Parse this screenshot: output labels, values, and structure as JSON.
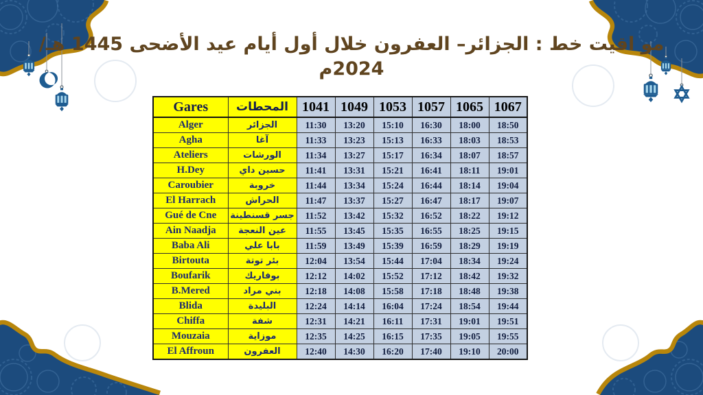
{
  "title": "مو اقيت خط : الجزائر– العفرون خلال أول أيام عيد الأضحى 1445 هـ/ 2024م",
  "table": {
    "headers": {
      "gares": "Gares",
      "stations_ar": "المحطات",
      "trains": [
        "1041",
        "1049",
        "1053",
        "1057",
        "1065",
        "1067"
      ]
    },
    "rows": [
      {
        "gare": "Alger",
        "ar": "الجزائر",
        "times": [
          "11:30",
          "13:20",
          "15:10",
          "16:30",
          "18:00",
          "18:50"
        ]
      },
      {
        "gare": "Agha",
        "ar": "آغا",
        "times": [
          "11:33",
          "13:23",
          "15:13",
          "16:33",
          "18:03",
          "18:53"
        ]
      },
      {
        "gare": "Ateliers",
        "ar": "الورشات",
        "times": [
          "11:34",
          "13:27",
          "15:17",
          "16:34",
          "18:07",
          "18:57"
        ]
      },
      {
        "gare": "H.Dey",
        "ar": "حسين داي",
        "times": [
          "11:41",
          "13:31",
          "15:21",
          "16:41",
          "18:11",
          "19:01"
        ]
      },
      {
        "gare": "Caroubier",
        "ar": "خروبة",
        "times": [
          "11:44",
          "13:34",
          "15:24",
          "16:44",
          "18:14",
          "19:04"
        ]
      },
      {
        "gare": "El Harrach",
        "ar": "الحراش",
        "times": [
          "11:47",
          "13:37",
          "15:27",
          "16:47",
          "18:17",
          "19:07"
        ]
      },
      {
        "gare": "Gué de Cne",
        "ar": "جسر قسنطينة",
        "times": [
          "11:52",
          "13:42",
          "15:32",
          "16:52",
          "18:22",
          "19:12"
        ]
      },
      {
        "gare": "Ain Naadja",
        "ar": "عين النعجة",
        "times": [
          "11:55",
          "13:45",
          "15:35",
          "16:55",
          "18:25",
          "19:15"
        ]
      },
      {
        "gare": "Baba Ali",
        "ar": "بابا علي",
        "times": [
          "11:59",
          "13:49",
          "15:39",
          "16:59",
          "18:29",
          "19:19"
        ]
      },
      {
        "gare": "Birtouta",
        "ar": "بئر توتة",
        "times": [
          "12:04",
          "13:54",
          "15:44",
          "17:04",
          "18:34",
          "19:24"
        ]
      },
      {
        "gare": "Boufarik",
        "ar": "بوفاريك",
        "times": [
          "12:12",
          "14:02",
          "15:52",
          "17:12",
          "18:42",
          "19:32"
        ]
      },
      {
        "gare": "B.Mered",
        "ar": "بني مراد",
        "times": [
          "12:18",
          "14:08",
          "15:58",
          "17:18",
          "18:48",
          "19:38"
        ]
      },
      {
        "gare": "Blida",
        "ar": "البليدة",
        "times": [
          "12:24",
          "14:14",
          "16:04",
          "17:24",
          "18:54",
          "19:44"
        ]
      },
      {
        "gare": "Chiffa",
        "ar": "شفة",
        "times": [
          "12:31",
          "14:21",
          "16:11",
          "17:31",
          "19:01",
          "19:51"
        ]
      },
      {
        "gare": "Mouzaia",
        "ar": "موزاية",
        "times": [
          "12:35",
          "14:25",
          "16:15",
          "17:35",
          "19:05",
          "19:55"
        ]
      },
      {
        "gare": "El Affroun",
        "ar": "العفرون",
        "times": [
          "12:40",
          "14:30",
          "16:20",
          "17:40",
          "19:10",
          "20:00"
        ]
      }
    ]
  },
  "colors": {
    "frame_blue": "#1c4b7d",
    "frame_gold": "#b8860b",
    "header_yellow": "#ffff00",
    "time_cell_blue": "#c3d0e2",
    "station_text_navy": "#1c2a6e",
    "time_text_navy": "#0f1b3d",
    "title_brown": "#5f441f",
    "lantern_blue": "#1e5c91"
  },
  "decorations": {
    "icons": [
      "lantern-icon",
      "crescent-icon",
      "star-icon"
    ]
  }
}
